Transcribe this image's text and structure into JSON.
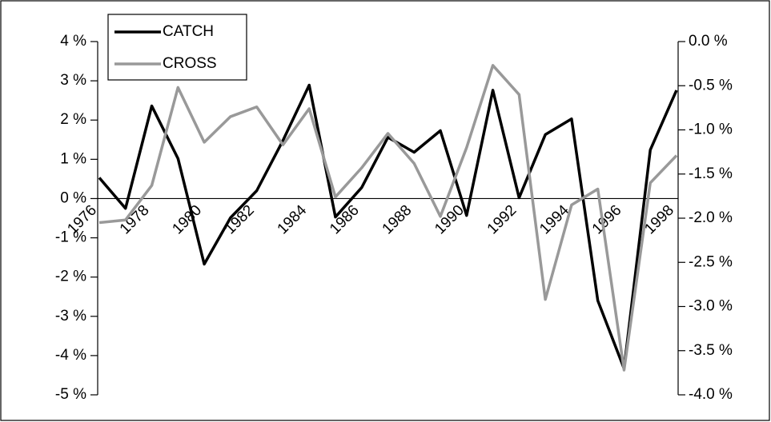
{
  "chart_data": {
    "type": "line",
    "categories": [
      "1976",
      null,
      "1978",
      null,
      "1980",
      null,
      "1982",
      null,
      "1984",
      null,
      "1986",
      null,
      "1988",
      null,
      "1990",
      null,
      "1992",
      null,
      "1994",
      null,
      "1996",
      null,
      "1998"
    ],
    "series": [
      {
        "name": "CATCH",
        "color": "#000000",
        "axis": "y",
        "values": [
          0.53,
          -0.25,
          2.36,
          1.02,
          -1.67,
          -0.49,
          0.2,
          1.48,
          2.89,
          -0.47,
          0.28,
          1.56,
          1.18,
          1.73,
          -0.43,
          2.76,
          0.02,
          1.63,
          2.03,
          -2.6,
          -4.33,
          1.24,
          2.76
        ]
      },
      {
        "name": "CROSS",
        "color": "#999999",
        "axis": "y2",
        "values": [
          -2.05,
          -2.02,
          -1.63,
          -0.52,
          -1.14,
          -0.85,
          -0.74,
          -1.17,
          -0.76,
          -1.76,
          -1.43,
          -1.04,
          -1.38,
          -1.98,
          -1.2,
          -0.27,
          -0.6,
          -2.92,
          -1.85,
          -1.67,
          -3.72,
          -1.6,
          -1.29
        ]
      }
    ],
    "ylim": [
      -5,
      4
    ],
    "yticks": [
      {
        "value": -5,
        "label": "-5 %"
      },
      {
        "value": -4,
        "label": "-4 %"
      },
      {
        "value": -3,
        "label": "-3 %"
      },
      {
        "value": -2,
        "label": "-2 %"
      },
      {
        "value": -1,
        "label": "-1 %"
      },
      {
        "value": 0,
        "label": "0 %"
      },
      {
        "value": 1,
        "label": "1 %"
      },
      {
        "value": 2,
        "label": "2 %"
      },
      {
        "value": 3,
        "label": "3 %"
      },
      {
        "value": 4,
        "label": "4 %"
      }
    ],
    "y2lim": [
      -4,
      0
    ],
    "y2ticks": [
      {
        "value": -4,
        "label": "-4.0 %"
      },
      {
        "value": -3.5,
        "label": "-3.5 %"
      },
      {
        "value": -3,
        "label": "-3.0 %"
      },
      {
        "value": -2.5,
        "label": "-2.5 %"
      },
      {
        "value": -2,
        "label": "-2.0 %"
      },
      {
        "value": -1.5,
        "label": "-1.5 %"
      },
      {
        "value": -1,
        "label": "-1.0 %"
      },
      {
        "value": -0.5,
        "label": "-0.5 %"
      },
      {
        "value": 0,
        "label": "0.0 %"
      }
    ],
    "legend": "upper left"
  }
}
